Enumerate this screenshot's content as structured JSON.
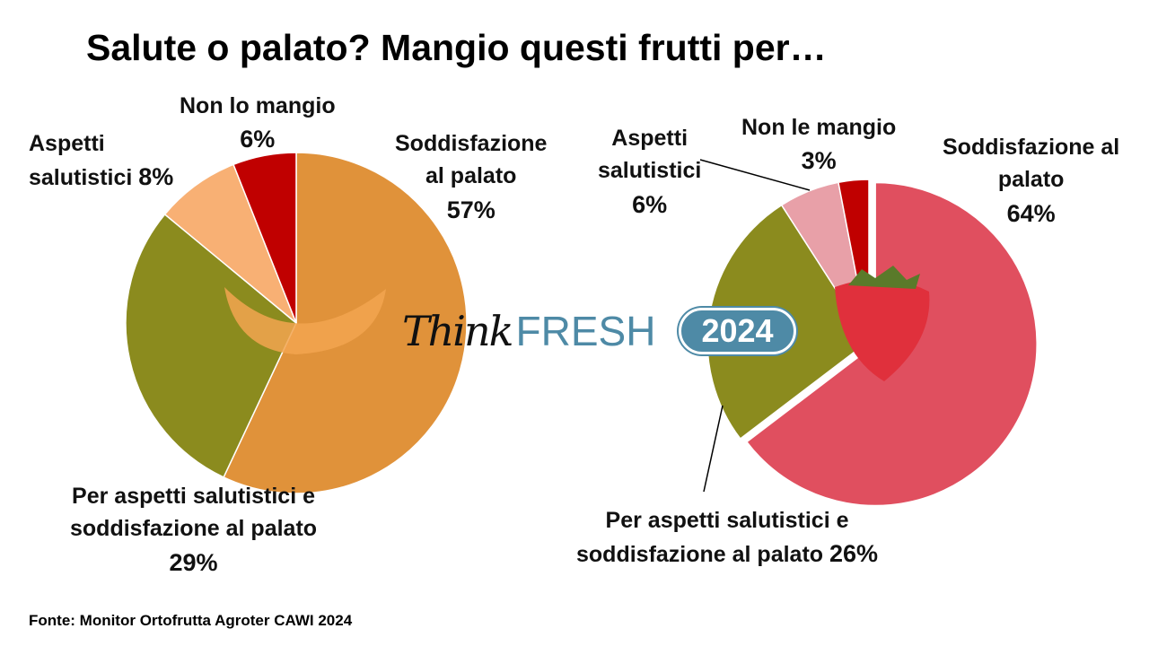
{
  "title": "Salute o palato? Mangio questi frutti per…",
  "source": "Fonte: Monitor Ortofrutta Agroter CAWI 2024",
  "logo": {
    "think": "Think",
    "fresh": "FRESH",
    "year": "2024"
  },
  "chart_data": [
    {
      "type": "pie",
      "categories": [
        "Soddisfazione al palato",
        "Per aspetti salutistici e soddisfazione al palato",
        "Aspetti salutistici",
        "Non lo mangio"
      ],
      "values": [
        57,
        29,
        8,
        6
      ],
      "colors": [
        "#E0923A",
        "#8B8B1E",
        "#F8B074",
        "#C00000"
      ],
      "labels": {
        "s0": {
          "text": "Soddisfazione\nal palato",
          "pct": "57%"
        },
        "s1": {
          "text": "Per aspetti salutistici e\nsoddisfazione al palato",
          "pct": "29%"
        },
        "s2": {
          "text": "Aspetti\nsalutistici",
          "pct": "8%"
        },
        "s3": {
          "text": "Non lo mangio",
          "pct": "6%"
        }
      }
    },
    {
      "type": "pie",
      "categories": [
        "Soddisfazione al palato",
        "Per aspetti salutistici e soddisfazione al palato",
        "Aspetti salutistici",
        "Non le mangio"
      ],
      "values": [
        64,
        26,
        6,
        3
      ],
      "colors": [
        "#E04F5F",
        "#8B8B1E",
        "#E8A0A8",
        "#C00000"
      ],
      "labels": {
        "s0": {
          "text": "Soddisfazione al\npalato",
          "pct": "64%"
        },
        "s1": {
          "text": "Per aspetti salutistici e\nsoddisfazione al palato",
          "pct": "26%"
        },
        "s2": {
          "text": "Aspetti\nsalutistici",
          "pct": "6%"
        },
        "s3": {
          "text": "Non le mangio",
          "pct": "3%"
        }
      }
    }
  ]
}
